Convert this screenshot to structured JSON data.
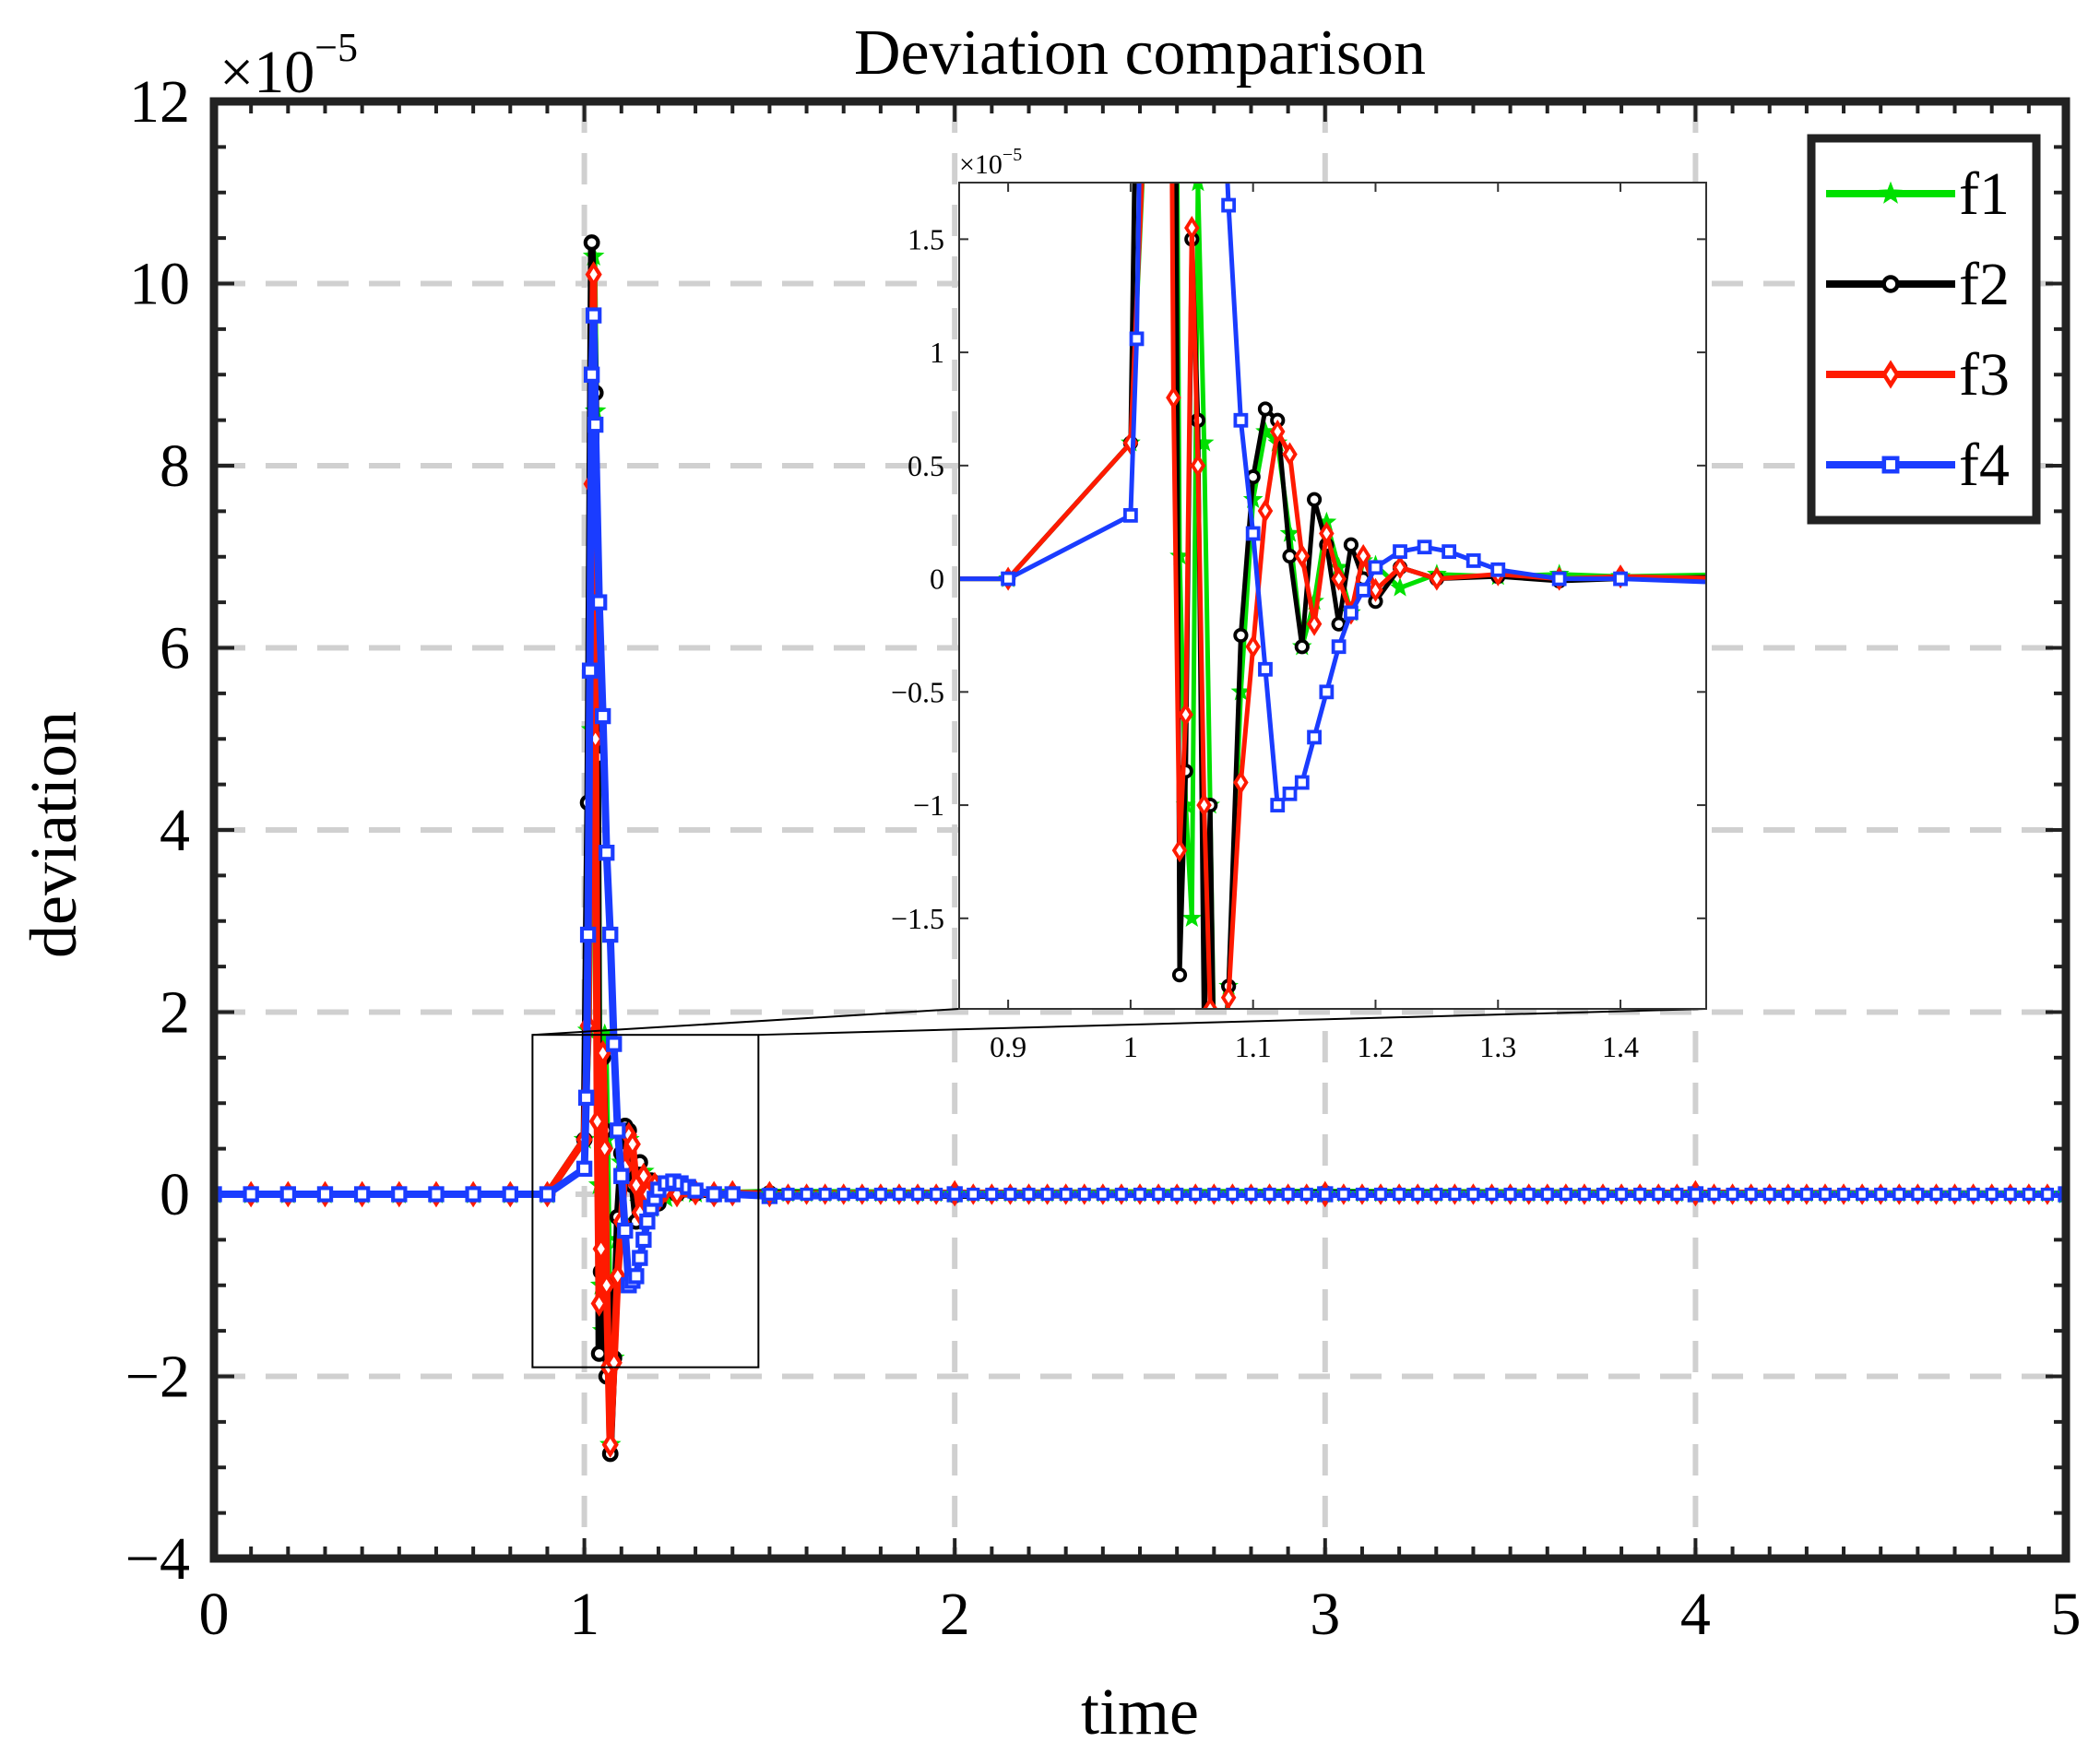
{
  "chart_data": {
    "type": "line",
    "title": "Deviation comparison",
    "xlabel": "time",
    "ylabel": "deviation",
    "multiplier_label": "×10",
    "multiplier_exponent": "−5",
    "xlim": [
      0,
      5
    ],
    "ylim": [
      -4,
      12
    ],
    "xticks": [
      0,
      1,
      2,
      3,
      4,
      5
    ],
    "xtick_labels": [
      "0",
      "1",
      "2",
      "3",
      "4",
      "5"
    ],
    "yticks": [
      -4,
      -2,
      0,
      2,
      4,
      6,
      8,
      10,
      12
    ],
    "ytick_labels": [
      "−4",
      "−2",
      "0",
      "2",
      "4",
      "6",
      "8",
      "10",
      "12"
    ],
    "grid": true,
    "legend_position": "top-right",
    "series": [
      {
        "name": "f1",
        "color": "#00e000",
        "marker": "star",
        "points": [
          [
            0,
            0
          ],
          [
            0.1,
            0
          ],
          [
            0.2,
            0
          ],
          [
            0.3,
            0
          ],
          [
            0.4,
            0
          ],
          [
            0.5,
            0
          ],
          [
            0.6,
            0
          ],
          [
            0.7,
            0
          ],
          [
            0.8,
            0
          ],
          [
            0.9,
            0
          ],
          [
            1.0,
            0.6
          ],
          [
            1.01,
            1.8
          ],
          [
            1.02,
            5.1
          ],
          [
            1.025,
            10.3
          ],
          [
            1.03,
            8.6
          ],
          [
            1.035,
            4.5
          ],
          [
            1.04,
            0.1
          ],
          [
            1.045,
            -1.0
          ],
          [
            1.05,
            -1.5
          ],
          [
            1.055,
            1.75
          ],
          [
            1.06,
            0.6
          ],
          [
            1.065,
            -1.0
          ],
          [
            1.07,
            -2.75
          ],
          [
            1.08,
            -1.8
          ],
          [
            1.09,
            -0.5
          ],
          [
            1.1,
            0.35
          ],
          [
            1.11,
            0.65
          ],
          [
            1.12,
            0.6
          ],
          [
            1.13,
            0.2
          ],
          [
            1.14,
            -0.3
          ],
          [
            1.15,
            -0.1
          ],
          [
            1.16,
            0.25
          ],
          [
            1.17,
            0.05
          ],
          [
            1.18,
            -0.15
          ],
          [
            1.19,
            0.08
          ],
          [
            1.2,
            0.06
          ],
          [
            1.22,
            -0.04
          ],
          [
            1.25,
            0.02
          ],
          [
            1.3,
            0.01
          ],
          [
            1.35,
            0.02
          ],
          [
            1.4,
            0.01
          ],
          [
            1.5,
            0.02
          ],
          [
            2,
            0.01
          ],
          [
            3,
            0.02
          ],
          [
            4,
            0.01
          ],
          [
            5,
            0.0
          ]
        ]
      },
      {
        "name": "f2",
        "color": "#000000",
        "marker": "circle",
        "points": [
          [
            0,
            0
          ],
          [
            0.1,
            0
          ],
          [
            0.2,
            0
          ],
          [
            0.3,
            0
          ],
          [
            0.4,
            0
          ],
          [
            0.5,
            0
          ],
          [
            0.6,
            0
          ],
          [
            0.7,
            0
          ],
          [
            0.8,
            0
          ],
          [
            0.9,
            0
          ],
          [
            1.0,
            0.6
          ],
          [
            1.01,
            4.3
          ],
          [
            1.02,
            10.45
          ],
          [
            1.03,
            8.8
          ],
          [
            1.035,
            4.8
          ],
          [
            1.04,
            -1.75
          ],
          [
            1.045,
            -0.85
          ],
          [
            1.05,
            1.5
          ],
          [
            1.055,
            0.7
          ],
          [
            1.06,
            -2.0
          ],
          [
            1.065,
            -1.0
          ],
          [
            1.07,
            -2.85
          ],
          [
            1.08,
            -1.8
          ],
          [
            1.09,
            -0.25
          ],
          [
            1.1,
            0.45
          ],
          [
            1.11,
            0.75
          ],
          [
            1.12,
            0.7
          ],
          [
            1.13,
            0.1
          ],
          [
            1.14,
            -0.3
          ],
          [
            1.15,
            0.35
          ],
          [
            1.16,
            0.15
          ],
          [
            1.17,
            -0.2
          ],
          [
            1.18,
            0.15
          ],
          [
            1.19,
            0.0
          ],
          [
            1.2,
            -0.1
          ],
          [
            1.22,
            0.05
          ],
          [
            1.25,
            0.0
          ],
          [
            1.3,
            0.01
          ],
          [
            1.35,
            -0.01
          ],
          [
            1.4,
            0.0
          ],
          [
            1.5,
            0.01
          ],
          [
            2,
            -0.01
          ],
          [
            3,
            0.01
          ],
          [
            4,
            0.0
          ],
          [
            5,
            0.0
          ]
        ]
      },
      {
        "name": "f3",
        "color": "#ff1a00",
        "marker": "diamond",
        "points": [
          [
            0,
            0
          ],
          [
            0.1,
            0
          ],
          [
            0.2,
            0
          ],
          [
            0.3,
            0
          ],
          [
            0.4,
            0
          ],
          [
            0.5,
            0
          ],
          [
            0.6,
            0
          ],
          [
            0.7,
            0
          ],
          [
            0.8,
            0
          ],
          [
            0.9,
            0
          ],
          [
            1.0,
            0.6
          ],
          [
            1.01,
            1.85
          ],
          [
            1.02,
            7.8
          ],
          [
            1.025,
            10.1
          ],
          [
            1.03,
            5.0
          ],
          [
            1.035,
            0.8
          ],
          [
            1.04,
            -1.2
          ],
          [
            1.045,
            -0.6
          ],
          [
            1.05,
            1.55
          ],
          [
            1.055,
            0.5
          ],
          [
            1.06,
            -1.0
          ],
          [
            1.065,
            -1.9
          ],
          [
            1.07,
            -2.75
          ],
          [
            1.08,
            -1.85
          ],
          [
            1.09,
            -0.9
          ],
          [
            1.1,
            -0.3
          ],
          [
            1.11,
            0.3
          ],
          [
            1.12,
            0.65
          ],
          [
            1.13,
            0.55
          ],
          [
            1.14,
            0.1
          ],
          [
            1.15,
            -0.2
          ],
          [
            1.16,
            0.2
          ],
          [
            1.17,
            0.0
          ],
          [
            1.18,
            -0.15
          ],
          [
            1.19,
            0.1
          ],
          [
            1.2,
            -0.05
          ],
          [
            1.22,
            0.05
          ],
          [
            1.25,
            0.0
          ],
          [
            1.3,
            0.02
          ],
          [
            1.35,
            0.0
          ],
          [
            1.4,
            0.01
          ],
          [
            1.5,
            0.0
          ],
          [
            2,
            0.01
          ],
          [
            3,
            0.0
          ],
          [
            4,
            0.01
          ],
          [
            5,
            0.0
          ]
        ]
      },
      {
        "name": "f4",
        "color": "#1a3cff",
        "marker": "square",
        "points": [
          [
            0,
            0
          ],
          [
            0.1,
            0
          ],
          [
            0.2,
            0
          ],
          [
            0.3,
            0
          ],
          [
            0.4,
            0
          ],
          [
            0.5,
            0
          ],
          [
            0.6,
            0
          ],
          [
            0.7,
            0
          ],
          [
            0.8,
            0
          ],
          [
            0.9,
            0
          ],
          [
            1.0,
            0.28
          ],
          [
            1.005,
            1.06
          ],
          [
            1.01,
            2.85
          ],
          [
            1.015,
            5.75
          ],
          [
            1.02,
            9.0
          ],
          [
            1.025,
            9.65
          ],
          [
            1.03,
            8.45
          ],
          [
            1.04,
            6.5
          ],
          [
            1.05,
            5.25
          ],
          [
            1.06,
            3.75
          ],
          [
            1.07,
            2.85
          ],
          [
            1.08,
            1.65
          ],
          [
            1.09,
            0.7
          ],
          [
            1.1,
            0.2
          ],
          [
            1.11,
            -0.4
          ],
          [
            1.12,
            -1.0
          ],
          [
            1.13,
            -0.95
          ],
          [
            1.14,
            -0.9
          ],
          [
            1.15,
            -0.7
          ],
          [
            1.16,
            -0.5
          ],
          [
            1.17,
            -0.3
          ],
          [
            1.18,
            -0.15
          ],
          [
            1.19,
            -0.05
          ],
          [
            1.2,
            0.05
          ],
          [
            1.22,
            0.12
          ],
          [
            1.24,
            0.14
          ],
          [
            1.26,
            0.12
          ],
          [
            1.28,
            0.08
          ],
          [
            1.3,
            0.04
          ],
          [
            1.35,
            0.0
          ],
          [
            1.4,
            0.0
          ],
          [
            1.5,
            -0.02
          ],
          [
            2,
            0.0
          ],
          [
            3,
            0.0
          ],
          [
            4,
            0.0
          ],
          [
            5,
            0.0
          ]
        ]
      }
    ],
    "inset": {
      "xlim": [
        0.86,
        1.47
      ],
      "ylim": [
        -1.9,
        1.75
      ],
      "xticks": [
        0.9,
        1,
        1.1,
        1.2,
        1.3,
        1.4
      ],
      "xtick_labels": [
        "0.9",
        "1",
        "1.1",
        "1.2",
        "1.3",
        "1.4"
      ],
      "yticks": [
        -1.5,
        -1,
        -0.5,
        0,
        0.5,
        1,
        1.5
      ],
      "ytick_labels": [
        "−1.5",
        "−1",
        "−0.5",
        "0",
        "0.5",
        "1",
        "1.5"
      ],
      "multiplier_label": "×10",
      "multiplier_exponent": "−5",
      "zoom_region": {
        "x": [
          0.86,
          1.47
        ],
        "y": [
          -1.9,
          1.75
        ]
      }
    }
  }
}
